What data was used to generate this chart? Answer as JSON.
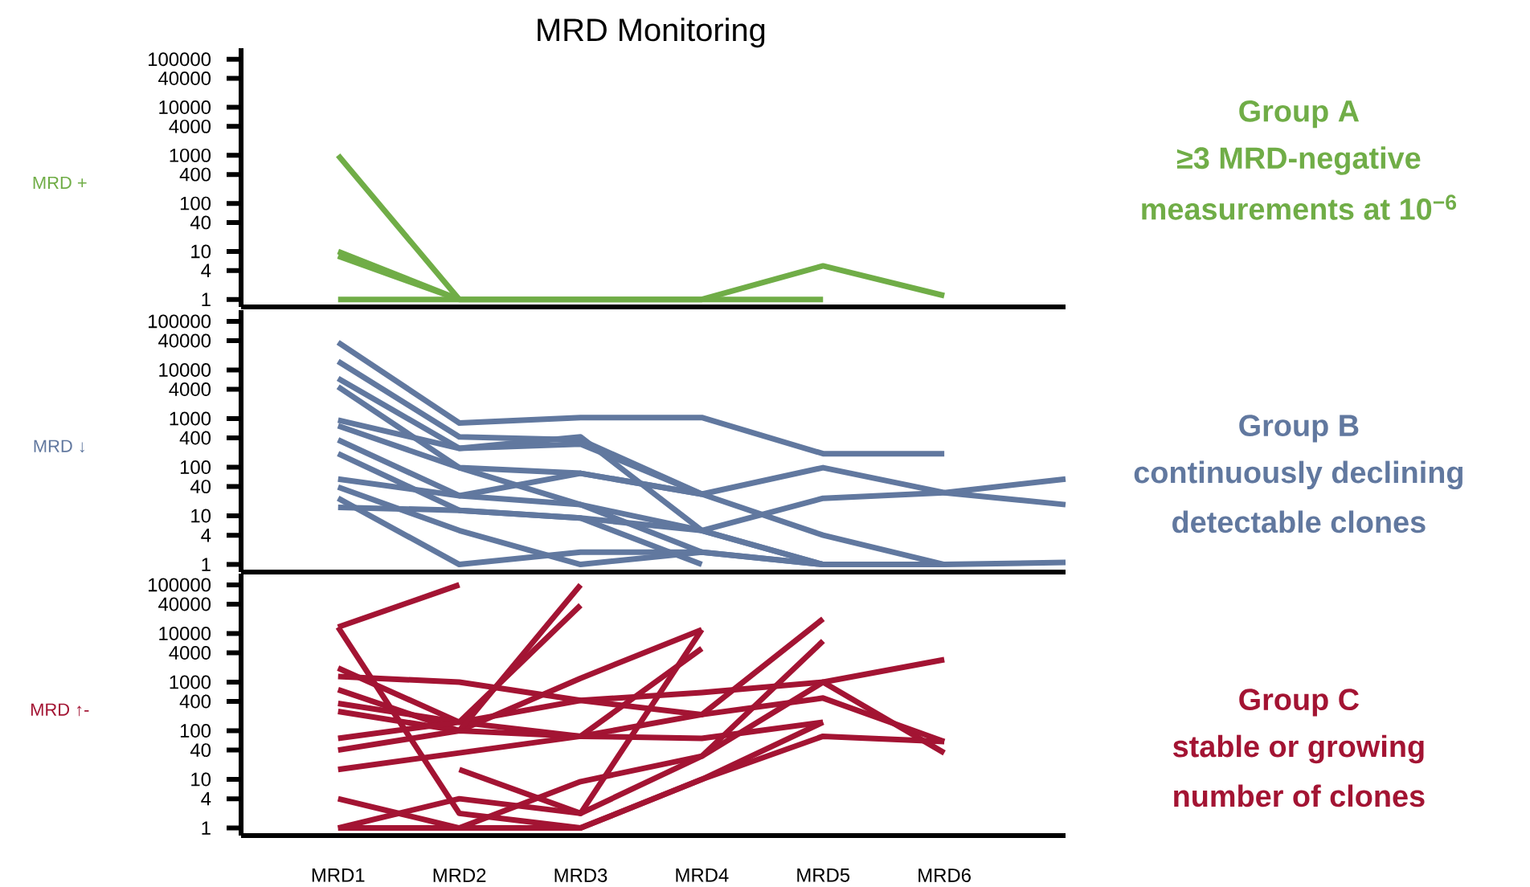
{
  "chart_data": [
    {
      "type": "line",
      "title": "MRD Monitoring",
      "ylabel": "MRD +",
      "log": "y",
      "tick_labels": "y",
      "categories": [
        null,
        null,
        null,
        null,
        null,
        null,
        null
      ],
      "ylim": [
        0.7,
        170000
      ],
      "yticks": [
        1,
        4,
        10,
        40,
        100,
        400,
        1000,
        4000,
        10000,
        40000,
        100000
      ],
      "annotations": [
        "Group A",
        "≥3 MRD-negative",
        "measurements at 10$^{−6}$"
      ],
      "series": [
        {
          "color": "#70ad47",
          "values": [
            1000,
            1,
            1,
            1,
            5,
            1.2,
            null
          ]
        },
        {
          "color": "#70ad47",
          "values": [
            10,
            1,
            null,
            null,
            null,
            null,
            null
          ]
        },
        {
          "color": "#70ad47",
          "values": [
            8,
            1,
            null,
            null,
            null,
            null,
            null
          ]
        },
        {
          "color": "#70ad47",
          "values": [
            1,
            1,
            1,
            1,
            1,
            null,
            null
          ]
        }
      ]
    },
    {
      "type": "line",
      "ylabel": "MRD ↓",
      "log": "y",
      "tick_labels": "y",
      "categories": [
        null,
        null,
        null,
        null,
        null,
        null,
        null
      ],
      "ylim": [
        0.7,
        170000
      ],
      "yticks": [
        1,
        4,
        10,
        40,
        100,
        400,
        1000,
        4000,
        10000,
        40000,
        100000
      ],
      "annotations": [
        "Group B",
        "continuously declining",
        "detectable clones"
      ],
      "series": [
        {
          "color": "#61789f",
          "values": [
            37000,
            810,
            1050,
            1050,
            190,
            190,
            null
          ]
        },
        {
          "color": "#61789f",
          "values": [
            15000,
            420,
            365,
            28,
            null,
            null,
            null
          ]
        },
        {
          "color": "#61789f",
          "values": [
            6700,
            245,
            420,
            5,
            1,
            null,
            null
          ]
        },
        {
          "color": "#61789f",
          "values": [
            4500,
            98,
            75,
            28,
            98,
            30,
            17
          ]
        },
        {
          "color": "#61789f",
          "values": [
            930,
            245,
            300,
            28,
            null,
            null,
            null
          ]
        },
        {
          "color": "#61789f",
          "values": [
            710,
            98,
            17,
            1.8,
            1,
            1,
            1.1
          ]
        },
        {
          "color": "#61789f",
          "values": [
            365,
            26,
            75,
            28,
            4,
            1,
            null
          ]
        },
        {
          "color": "#61789f",
          "values": [
            190,
            13,
            9,
            5,
            23,
            30,
            57
          ]
        },
        {
          "color": "#61789f",
          "values": [
            57,
            26,
            17,
            5,
            1,
            null,
            null
          ]
        },
        {
          "color": "#61789f",
          "values": [
            39,
            5,
            1,
            1.8,
            1,
            null,
            null
          ]
        },
        {
          "color": "#61789f",
          "values": [
            23,
            1,
            1.8,
            1.8,
            null,
            null,
            null
          ]
        },
        {
          "color": "#61789f",
          "values": [
            15,
            13,
            9,
            1,
            null,
            null,
            null
          ]
        }
      ]
    },
    {
      "type": "line",
      "ylabel": "MRD ↑-",
      "log": "y",
      "categories": [
        "MRD1",
        "MRD2",
        "MRD3",
        "MRD4",
        "MRD5",
        "MRD6",
        null
      ],
      "ylim": [
        0.7,
        170000
      ],
      "yticks": [
        1,
        4,
        10,
        40,
        100,
        400,
        1000,
        4000,
        10000,
        40000,
        100000
      ],
      "annotations": [
        "Group C",
        "stable or growing",
        "number of clones"
      ],
      "series": [
        {
          "color": "#a31433",
          "values": [
            13500,
            100000,
            null,
            null,
            null,
            null,
            null
          ]
        },
        {
          "color": "#a31433",
          "values": [
            13500,
            2,
            1,
            10,
            150,
            null,
            null
          ]
        },
        {
          "color": "#a31433",
          "values": [
            1950,
            150,
            420,
            610,
            1000,
            35,
            null
          ]
        },
        {
          "color": "#a31433",
          "values": [
            1300,
            1000,
            420,
            215,
            470,
            60,
            null
          ]
        },
        {
          "color": "#a31433",
          "values": [
            700,
            100,
            1200,
            12000,
            null,
            null,
            null
          ]
        },
        {
          "color": "#a31433",
          "values": [
            365,
            150,
            77,
            215,
            20000,
            null,
            null
          ]
        },
        {
          "color": "#a31433",
          "values": [
            250,
            100,
            100000,
            null,
            null,
            null,
            null
          ]
        },
        {
          "color": "#a31433",
          "values": [
            70,
            150,
            38000,
            null,
            null,
            null,
            null
          ]
        },
        {
          "color": "#a31433",
          "values": [
            40,
            100,
            77,
            70,
            150,
            null,
            null
          ]
        },
        {
          "color": "#a31433",
          "values": [
            16,
            35,
            77,
            4900,
            null,
            null,
            null
          ]
        },
        {
          "color": "#a31433",
          "values": [
            4,
            1,
            9,
            30,
            7000,
            null,
            null
          ]
        },
        {
          "color": "#a31433",
          "values": [
            1,
            4,
            2,
            30,
            1000,
            2900,
            null
          ]
        },
        {
          "color": "#a31433",
          "values": [
            1,
            1,
            1,
            10,
            77,
            60,
            null
          ]
        },
        {
          "color": "#a31433",
          "values": [
            null,
            16,
            2,
            12000,
            null,
            null,
            null
          ]
        }
      ]
    }
  ]
}
